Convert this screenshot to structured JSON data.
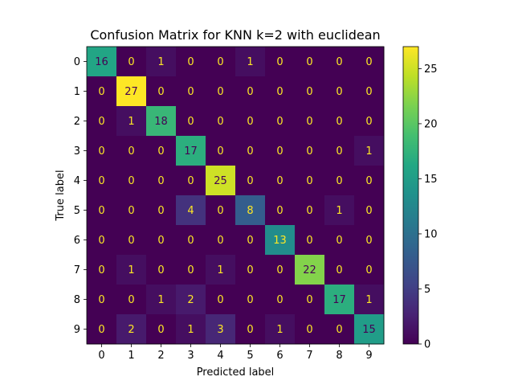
{
  "chart_data": {
    "type": "heatmap",
    "title": "Confusion Matrix for KNN k=2 with euclidean",
    "xlabel": "Predicted label",
    "ylabel": "True label",
    "x_tick_labels": [
      "0",
      "1",
      "2",
      "3",
      "4",
      "5",
      "6",
      "7",
      "8",
      "9"
    ],
    "y_tick_labels": [
      "0",
      "1",
      "2",
      "3",
      "4",
      "5",
      "6",
      "7",
      "8",
      "9"
    ],
    "matrix": [
      [
        16,
        0,
        1,
        0,
        0,
        1,
        0,
        0,
        0,
        0
      ],
      [
        0,
        27,
        0,
        0,
        0,
        0,
        0,
        0,
        0,
        0
      ],
      [
        0,
        1,
        18,
        0,
        0,
        0,
        0,
        0,
        0,
        0
      ],
      [
        0,
        0,
        0,
        17,
        0,
        0,
        0,
        0,
        0,
        1
      ],
      [
        0,
        0,
        0,
        0,
        25,
        0,
        0,
        0,
        0,
        0
      ],
      [
        0,
        0,
        0,
        4,
        0,
        8,
        0,
        0,
        1,
        0
      ],
      [
        0,
        0,
        0,
        0,
        0,
        0,
        13,
        0,
        0,
        0
      ],
      [
        0,
        1,
        0,
        0,
        1,
        0,
        0,
        22,
        0,
        0
      ],
      [
        0,
        0,
        1,
        2,
        0,
        0,
        0,
        0,
        17,
        1
      ],
      [
        0,
        2,
        0,
        1,
        3,
        0,
        1,
        0,
        0,
        15
      ]
    ],
    "colormap": "viridis",
    "vmin": 0,
    "vmax": 27,
    "colorbar_ticks": [
      0,
      5,
      10,
      15,
      20,
      25
    ],
    "colorbar_tick_labels": [
      "0",
      "5",
      "10",
      "15",
      "20",
      "25"
    ],
    "text_color_on_dark": "#fde725",
    "text_color_on_light": "#440154"
  }
}
